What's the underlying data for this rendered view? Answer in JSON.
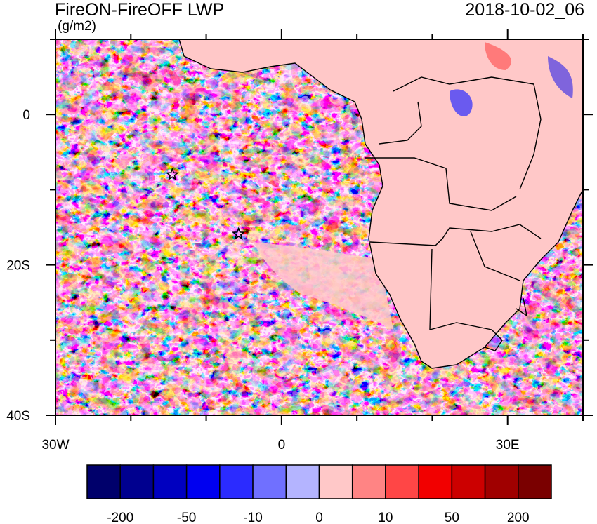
{
  "title": "FireON-FireOFF LWP",
  "units": "(g/m2)",
  "timestamp": "2018-10-02_06",
  "map": {
    "lon_range": [
      -30,
      40
    ],
    "lat_range": [
      -40,
      10
    ],
    "lon_ticks": [
      {
        "value": -30,
        "label": "30W"
      },
      {
        "value": 0,
        "label": "0"
      },
      {
        "value": 30,
        "label": "30E"
      }
    ],
    "lat_ticks": [
      {
        "value": 0,
        "label": "0"
      },
      {
        "value": -20,
        "label": "20S"
      },
      {
        "value": -40,
        "label": "40S"
      }
    ],
    "markers": [
      {
        "name": "star",
        "lon": -14.5,
        "lat": -8
      },
      {
        "name": "star",
        "lon": -5.7,
        "lat": -15.9
      }
    ]
  },
  "colorbar": {
    "colors": [
      "#00006b",
      "#00008f",
      "#0000c0",
      "#0000f0",
      "#2b2bff",
      "#7070ff",
      "#b4b4ff",
      "#ffc8c8",
      "#ff8484",
      "#ff4646",
      "#f20000",
      "#cc0000",
      "#a00000",
      "#7a0000"
    ],
    "labels": [
      "-200",
      "-50",
      "-10",
      "0",
      "10",
      "50",
      "200"
    ]
  }
}
